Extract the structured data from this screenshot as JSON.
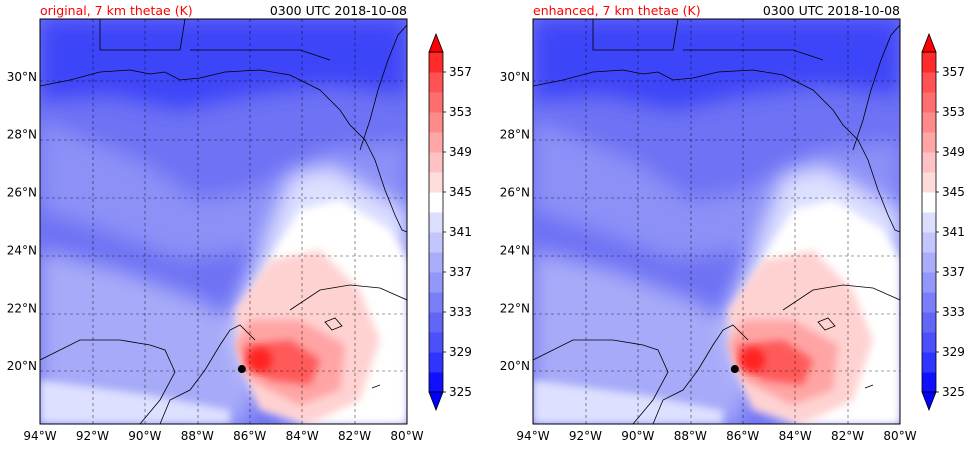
{
  "chart_data": [
    {
      "type": "heatmap",
      "title": "original, 7 km thetae (K)",
      "time_label": "0300 UTC 2018-10-08",
      "x_range": [
        -94,
        -80
      ],
      "y_range": [
        18,
        32
      ],
      "x_ticks": [
        "94°W",
        "92°W",
        "90°W",
        "88°W",
        "86°W",
        "84°W",
        "82°W",
        "80°W"
      ],
      "y_ticks": [
        "20°N",
        "22°N",
        "24°N",
        "26°N",
        "28°N",
        "30°N"
      ],
      "colorbar_levels": [
        325,
        327,
        329,
        331,
        333,
        335,
        337,
        339,
        341,
        343,
        345,
        347,
        349,
        351,
        353,
        355,
        357,
        359
      ],
      "colorbar_labels": [
        "325",
        "329",
        "333",
        "337",
        "341",
        "345",
        "349",
        "353",
        "357"
      ],
      "storm_center": {
        "lon": -86.3,
        "lat": 19.9
      },
      "grid": true
    },
    {
      "type": "heatmap",
      "title": "enhanced, 7 km thetae (K)",
      "time_label": "0300 UTC 2018-10-08",
      "x_range": [
        -94,
        -80
      ],
      "y_range": [
        18,
        32
      ],
      "x_ticks": [
        "94°W",
        "92°W",
        "90°W",
        "88°W",
        "86°W",
        "84°W",
        "82°W",
        "80°W"
      ],
      "y_ticks": [
        "20°N",
        "22°N",
        "24°N",
        "26°N",
        "28°N",
        "30°N"
      ],
      "colorbar_levels": [
        325,
        327,
        329,
        331,
        333,
        335,
        337,
        339,
        341,
        343,
        345,
        347,
        349,
        351,
        353,
        355,
        357,
        359
      ],
      "colorbar_labels": [
        "325",
        "329",
        "333",
        "337",
        "341",
        "345",
        "349",
        "353",
        "357"
      ],
      "storm_center": {
        "lon": -86.3,
        "lat": 19.9
      },
      "grid": true
    }
  ],
  "colors": {
    "cold_deep": "#1010ff",
    "warm_deep": "#ff1010",
    "title_accent": "#ff0000"
  }
}
